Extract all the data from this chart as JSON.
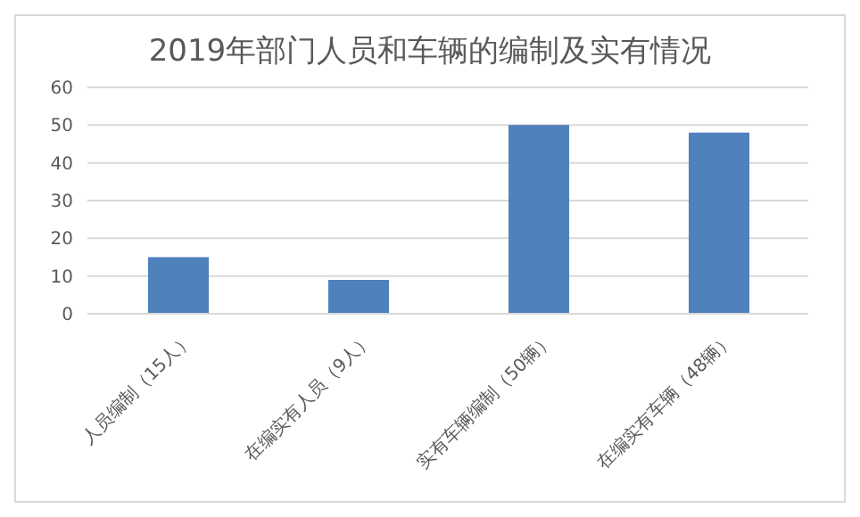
{
  "chart_data": {
    "type": "bar",
    "title": "2019年部门人员和车辆的编制及实有情况",
    "categories": [
      "人员编制（15人）",
      "在编实有人员（9人）",
      "实有车辆编制（50辆）",
      "在编实有车辆（48辆）"
    ],
    "values": [
      15,
      9,
      50,
      48
    ],
    "color": "#4f81bd",
    "ylim": [
      0,
      60
    ],
    "yticks": [
      0,
      10,
      20,
      30,
      40,
      50,
      60
    ],
    "grid": "y"
  }
}
